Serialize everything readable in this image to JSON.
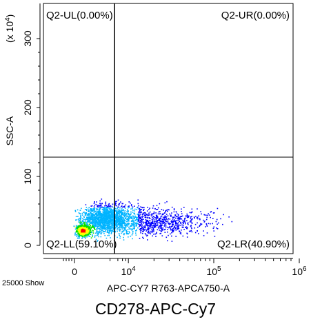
{
  "chart_data": {
    "type": "scatter",
    "title": "CD278-APC-Cy7",
    "xlabel": "APC-CY7 R763-APCA750-A",
    "ylabel": "SSC-A",
    "y_exponent_label": "(x 10",
    "y_exponent_sup": "4",
    "x_scale": "biexponential",
    "xlim": [
      -1000,
      1000000
    ],
    "ylim": [
      0,
      350
    ],
    "y_ticks": [
      "0",
      "100",
      "200",
      "300"
    ],
    "x_ticks": [
      {
        "base": "0",
        "sup": ""
      },
      {
        "base": "10",
        "sup": "4"
      },
      {
        "base": "10",
        "sup": "5"
      },
      {
        "base": "10",
        "sup": "6"
      }
    ],
    "gate": {
      "x_divider": 3000,
      "y_divider": 128
    },
    "quadrants": [
      {
        "key": "ul",
        "label": "Q2-UL(0.00%)",
        "percent": 0.0
      },
      {
        "key": "ur",
        "label": "Q2-UR(0.00%)",
        "percent": 0.0
      },
      {
        "key": "ll",
        "label": "Q2-LL(59.10%)",
        "percent": 59.1
      },
      {
        "key": "lr",
        "label": "Q2-LR(40.90%)",
        "percent": 40.9
      }
    ],
    "events_label": "25000 Show",
    "grid": false,
    "density_colors": [
      "#0000ff",
      "#00b4ff",
      "#00e000",
      "#ffff00",
      "#ff0000"
    ]
  }
}
